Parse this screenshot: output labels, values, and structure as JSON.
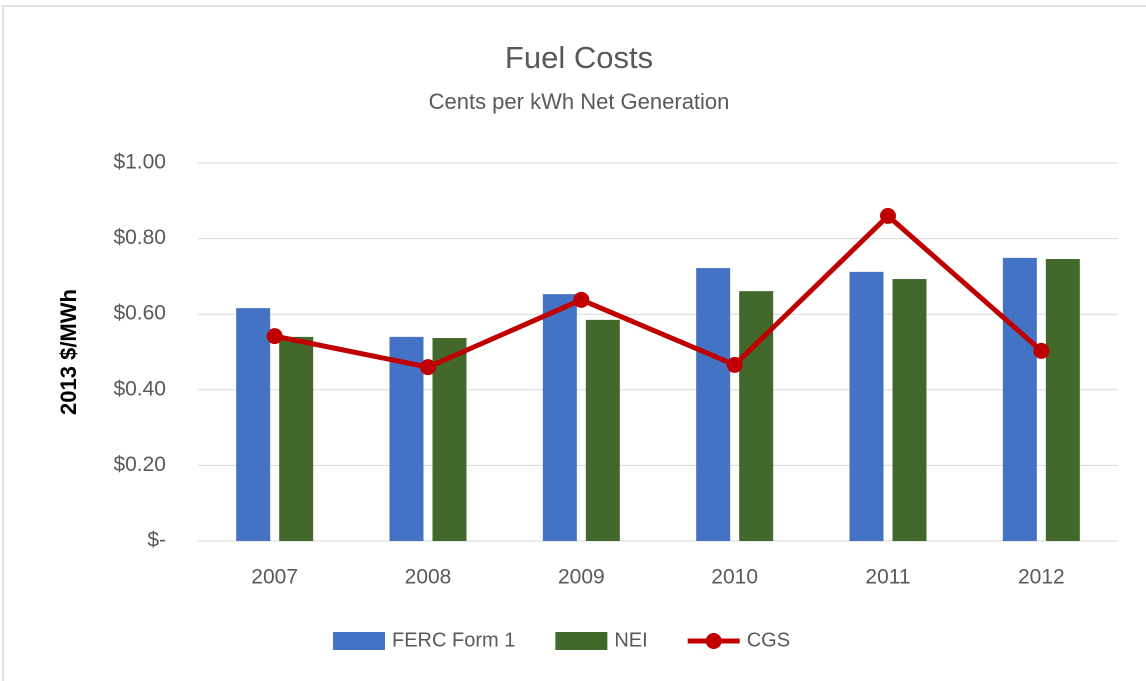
{
  "chart_data": {
    "type": "bar_line",
    "title": "Fuel Costs",
    "subtitle": "Cents per kWh Net Generation",
    "ylabel": "2013 $/MWh",
    "categories": [
      "2007",
      "2008",
      "2009",
      "2010",
      "2011",
      "2012"
    ],
    "series": [
      {
        "name": "FERC Form 1",
        "type": "bar",
        "color": "#4472c4",
        "values": [
          0.616,
          0.54,
          0.653,
          0.722,
          0.712,
          0.749
        ]
      },
      {
        "name": "NEI",
        "type": "bar",
        "color": "#43682b",
        "values": [
          0.54,
          0.537,
          0.585,
          0.661,
          0.693,
          0.746
        ]
      },
      {
        "name": "CGS",
        "type": "line",
        "color": "#c00000",
        "values": [
          0.542,
          0.46,
          0.638,
          0.466,
          0.86,
          0.503
        ]
      }
    ],
    "ylim": [
      0,
      1
    ],
    "yticks": [
      {
        "value": 0,
        "label": "$-"
      },
      {
        "value": 0.2,
        "label": "$0.20"
      },
      {
        "value": 0.4,
        "label": "$0.40"
      },
      {
        "value": 0.6,
        "label": "$0.60"
      },
      {
        "value": 0.8,
        "label": "$0.80"
      },
      {
        "value": 1,
        "label": "$1.00"
      }
    ],
    "grid": true,
    "legend": "bottom"
  }
}
